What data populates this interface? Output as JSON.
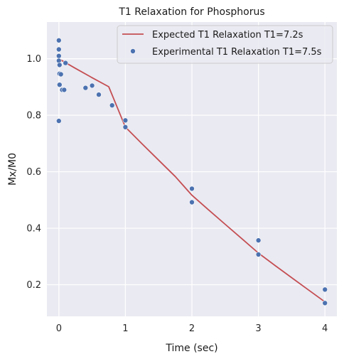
{
  "chart_data": {
    "type": "scatter",
    "title": "T1 Relaxation for Phosphorus",
    "xlabel": "Time (sec)",
    "ylabel": "Mx/M0",
    "xlim": [
      -0.18,
      4.18
    ],
    "ylim": [
      0.088,
      1.13
    ],
    "x_ticks": [
      0,
      1,
      2,
      3,
      4
    ],
    "x_tick_labels": [
      "0",
      "1",
      "2",
      "3",
      "4"
    ],
    "y_ticks": [
      0.2,
      0.4,
      0.6,
      0.8,
      1.0
    ],
    "y_tick_labels": [
      "0.2",
      "0.4",
      "0.6",
      "0.8",
      "1.0"
    ],
    "grid": true,
    "legend_position": "top-right",
    "series": [
      {
        "name": "Expected T1 Relaxation T1=7.2s",
        "kind": "line",
        "color": "#c44e52",
        "x": [
          0,
          0.25,
          0.5,
          0.75,
          1,
          1.25,
          1.5,
          1.75,
          2,
          2.25,
          2.5,
          2.75,
          3,
          3.25,
          3.5,
          3.75,
          4
        ],
        "y": [
          1.0,
          0.966,
          0.933,
          0.901,
          0.758,
          0.699,
          0.641,
          0.583,
          0.517,
          0.465,
          0.414,
          0.363,
          0.312,
          0.268,
          0.225,
          0.182,
          0.139
        ]
      },
      {
        "name": "Experimental T1 Relaxation T1=7.5s",
        "kind": "scatter",
        "color": "#4c72b0",
        "x": [
          0,
          0,
          0,
          0,
          0,
          0.01,
          0.01,
          0.01,
          0.03,
          0.05,
          0.08,
          0.1,
          0.4,
          0.5,
          0.6,
          0.8,
          1,
          1,
          2,
          2,
          3,
          3,
          4,
          4
        ],
        "y": [
          1.065,
          1.033,
          1.01,
          0.993,
          0.78,
          0.978,
          0.947,
          0.908,
          0.945,
          0.89,
          0.89,
          0.985,
          0.897,
          0.905,
          0.873,
          0.835,
          0.782,
          0.758,
          0.54,
          0.492,
          0.357,
          0.307,
          0.183,
          0.135
        ]
      }
    ]
  }
}
